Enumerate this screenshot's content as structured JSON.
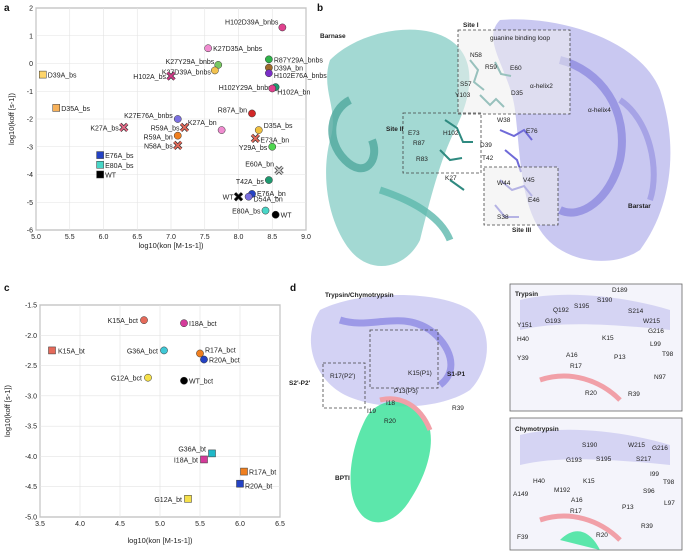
{
  "panels": {
    "a": "a",
    "b": "b",
    "c": "c",
    "d": "d"
  },
  "chart_data": [
    {
      "type": "scatter",
      "panel": "a",
      "xlabel": "log10(kon [M-1s-1])",
      "ylabel": "log10(koff [s-1])",
      "xlim": [
        5.0,
        9.0
      ],
      "ylim": [
        -6,
        2
      ],
      "xticks": [
        "5.0",
        "5.5",
        "6.0",
        "6.5",
        "7.0",
        "7.5",
        "8.0",
        "8.5",
        "9.0"
      ],
      "yticks": [
        "2",
        "1",
        "0",
        "-1",
        "-2",
        "-3",
        "-4",
        "-5",
        "-6"
      ],
      "points": [
        {
          "label": "H102D39A_bnbs",
          "x": 8.65,
          "y": 1.3,
          "color": "#e0418e",
          "marker": "circle"
        },
        {
          "label": "K27D35A_bnbs",
          "x": 7.55,
          "y": 0.55,
          "color": "#f08cd0",
          "marker": "circle"
        },
        {
          "label": "R87Y29A_bnbs",
          "x": 8.45,
          "y": 0.15,
          "color": "#2fb34a",
          "marker": "circle"
        },
        {
          "label": "K27Y29A_bnbs",
          "x": 7.7,
          "y": -0.05,
          "color": "#78c862",
          "marker": "circle"
        },
        {
          "label": "K27D39A_bnbs",
          "x": 7.65,
          "y": -0.25,
          "color": "#f2c24f",
          "marker": "circle"
        },
        {
          "label": "D39A_bs",
          "x": 5.1,
          "y": -0.4,
          "color": "#fdd56c",
          "marker": "square"
        },
        {
          "label": "D39A_bn",
          "x": 8.45,
          "y": -0.15,
          "color": "#9e6a2c",
          "marker": "circle"
        },
        {
          "label": "H102E76A_bnbs",
          "x": 8.45,
          "y": -0.35,
          "color": "#7b2fc8",
          "marker": "circle"
        },
        {
          "label": "H102A_bs",
          "x": 7.0,
          "y": -0.45,
          "color": "#d43b8a",
          "marker": "x"
        },
        {
          "label": "H102Y29A_bnbs",
          "x": 8.55,
          "y": -0.85,
          "color": "#1f9a70",
          "marker": "circle"
        },
        {
          "label": "H102A_bn",
          "x": 8.5,
          "y": -0.9,
          "color": "#e0418e",
          "marker": "circle"
        },
        {
          "label": "D35A_bs",
          "x": 5.3,
          "y": -1.6,
          "color": "#f7b15a",
          "marker": "square"
        },
        {
          "label": "R87A_bn",
          "x": 8.2,
          "y": -1.8,
          "color": "#d22626",
          "marker": "circle"
        },
        {
          "label": "K27E76A_bnbs",
          "x": 7.1,
          "y": -2.0,
          "color": "#7b6fe0",
          "marker": "circle"
        },
        {
          "label": "K27A_bn",
          "x": 7.75,
          "y": -2.4,
          "color": "#f08cd0",
          "marker": "circle"
        },
        {
          "label": "K27A_bs",
          "x": 6.3,
          "y": -2.3,
          "color": "#e56a88",
          "marker": "x"
        },
        {
          "label": "R59A_bs",
          "x": 7.2,
          "y": -2.3,
          "color": "#e56a5a",
          "marker": "x"
        },
        {
          "label": "D35A_bs",
          "x": 8.3,
          "y": -2.4,
          "color": "#f0c040",
          "marker": "circle"
        },
        {
          "label": "R59A_bn",
          "x": 7.1,
          "y": -2.6,
          "color": "#f07f1f",
          "marker": "circle"
        },
        {
          "label": "E73A_bn",
          "x": 8.25,
          "y": -2.7,
          "color": "#e56a5a",
          "marker": "x"
        },
        {
          "label": "N58A_bs",
          "x": 7.1,
          "y": -2.95,
          "color": "#e56a5a",
          "marker": "x"
        },
        {
          "label": "Y29A_bs",
          "x": 8.5,
          "y": -3.0,
          "color": "#4ed650",
          "marker": "circle"
        },
        {
          "label": "E76A_bs",
          "x": 5.95,
          "y": -3.3,
          "color": "#2442c4",
          "marker": "square"
        },
        {
          "label": "E80A_bs",
          "x": 5.95,
          "y": -3.65,
          "color": "#49d6c7",
          "marker": "square"
        },
        {
          "label": "WT",
          "x": 5.95,
          "y": -4.0,
          "color": "#000000",
          "marker": "square"
        },
        {
          "label": "E60A_bn",
          "x": 8.6,
          "y": -3.85,
          "color": "#cccccc",
          "marker": "x"
        },
        {
          "label": "T42A_bs",
          "x": 8.45,
          "y": -4.2,
          "color": "#1f9a70",
          "marker": "circle"
        },
        {
          "label": "E76A_bn",
          "x": 8.2,
          "y": -4.7,
          "color": "#2442c4",
          "marker": "circle"
        },
        {
          "label": "D54A_bn",
          "x": 8.15,
          "y": -4.8,
          "color": "#7b6fe0",
          "marker": "circle"
        },
        {
          "label": "WT",
          "x": 8.0,
          "y": -4.8,
          "color": "#000000",
          "marker": "x"
        },
        {
          "label": "E80A_bs",
          "x": 8.4,
          "y": -5.3,
          "color": "#49d6c7",
          "marker": "circle"
        },
        {
          "label": "WT",
          "x": 8.55,
          "y": -5.45,
          "color": "#000000",
          "marker": "circle"
        }
      ]
    },
    {
      "type": "scatter",
      "panel": "c",
      "xlabel": "log10(kon [M-1s-1])",
      "ylabel": "log10(koff [s-1])",
      "xlim": [
        3.5,
        6.5
      ],
      "ylim": [
        -5.0,
        -1.5
      ],
      "xticks": [
        "3.5",
        "4.0",
        "4.5",
        "5.0",
        "5.5",
        "6.0",
        "6.5"
      ],
      "yticks": [
        "-1.5",
        "-2.0",
        "-2.5",
        "-3.0",
        "-3.5",
        "-4.0",
        "-4.5",
        "-5.0"
      ],
      "points": [
        {
          "label": "K15A_bct",
          "x": 4.8,
          "y": -1.75,
          "color": "#e56a5a",
          "marker": "circle"
        },
        {
          "label": "I18A_bct",
          "x": 5.3,
          "y": -1.8,
          "color": "#d43b9a",
          "marker": "circle"
        },
        {
          "label": "K15A_bt",
          "x": 3.65,
          "y": -2.25,
          "color": "#e56a5a",
          "marker": "square"
        },
        {
          "label": "G36A_bct",
          "x": 5.05,
          "y": -2.25,
          "color": "#3fc8d6",
          "marker": "circle"
        },
        {
          "label": "R17A_bct",
          "x": 5.5,
          "y": -2.3,
          "color": "#f07f1f",
          "marker": "circle"
        },
        {
          "label": "R20A_bct",
          "x": 5.55,
          "y": -2.4,
          "color": "#2442c4",
          "marker": "circle"
        },
        {
          "label": "G12A_bct",
          "x": 4.85,
          "y": -2.7,
          "color": "#f5e04a",
          "marker": "circle"
        },
        {
          "label": "WT_bct",
          "x": 5.3,
          "y": -2.75,
          "color": "#000000",
          "marker": "circle"
        },
        {
          "label": "G36A_bt",
          "x": 5.65,
          "y": -3.95,
          "color": "#1fb8c8",
          "marker": "square"
        },
        {
          "label": "I18A_bt",
          "x": 5.55,
          "y": -4.05,
          "color": "#d43b9a",
          "marker": "square"
        },
        {
          "label": "R17A_bt",
          "x": 6.05,
          "y": -4.25,
          "color": "#f07f1f",
          "marker": "square"
        },
        {
          "label": "R20A_bt",
          "x": 6.0,
          "y": -4.45,
          "color": "#2442c4",
          "marker": "square"
        },
        {
          "label": "G12A_bt",
          "x": 5.35,
          "y": -4.7,
          "color": "#f5e04a",
          "marker": "square"
        }
      ]
    }
  ],
  "structure_b": {
    "titles": [
      "Barnase",
      "Barstar"
    ],
    "sites": [
      "Site I",
      "Site II",
      "Site III"
    ],
    "labels": [
      "guanine binding loop",
      "N58",
      "R59",
      "E60",
      "S57",
      "D35",
      "Y103",
      "α-helix2",
      "α-helix4",
      "E73",
      "H102",
      "W38",
      "E76",
      "R87",
      "D39",
      "R83",
      "T42",
      "K27",
      "W44",
      "V45",
      "E46",
      "S38"
    ]
  },
  "structure_d": {
    "titles": [
      "Trypsin/Chymotrypsin",
      "BPTI",
      "S2'-P2'",
      "S1-P1",
      "Trypsin",
      "Chymotrypsin"
    ],
    "main_labels": [
      "K15(P1)",
      "R17(P2')",
      "P13(P3)",
      "I18",
      "I19",
      "R20",
      "R39"
    ],
    "trypsin_labels": [
      "D189",
      "S190",
      "Q192",
      "S195",
      "G193",
      "S214",
      "W215",
      "G216",
      "Y151",
      "H40",
      "K15",
      "L99",
      "T98",
      "Y39",
      "A16",
      "P13",
      "R17",
      "N97",
      "R20",
      "R39"
    ],
    "chymo_labels": [
      "S190",
      "G193",
      "S195",
      "W215",
      "G216",
      "S217",
      "H40",
      "M192",
      "K15",
      "I99",
      "T98",
      "A149",
      "A16",
      "S96",
      "L97",
      "R17",
      "P13",
      "F39",
      "R20",
      "R39"
    ]
  }
}
